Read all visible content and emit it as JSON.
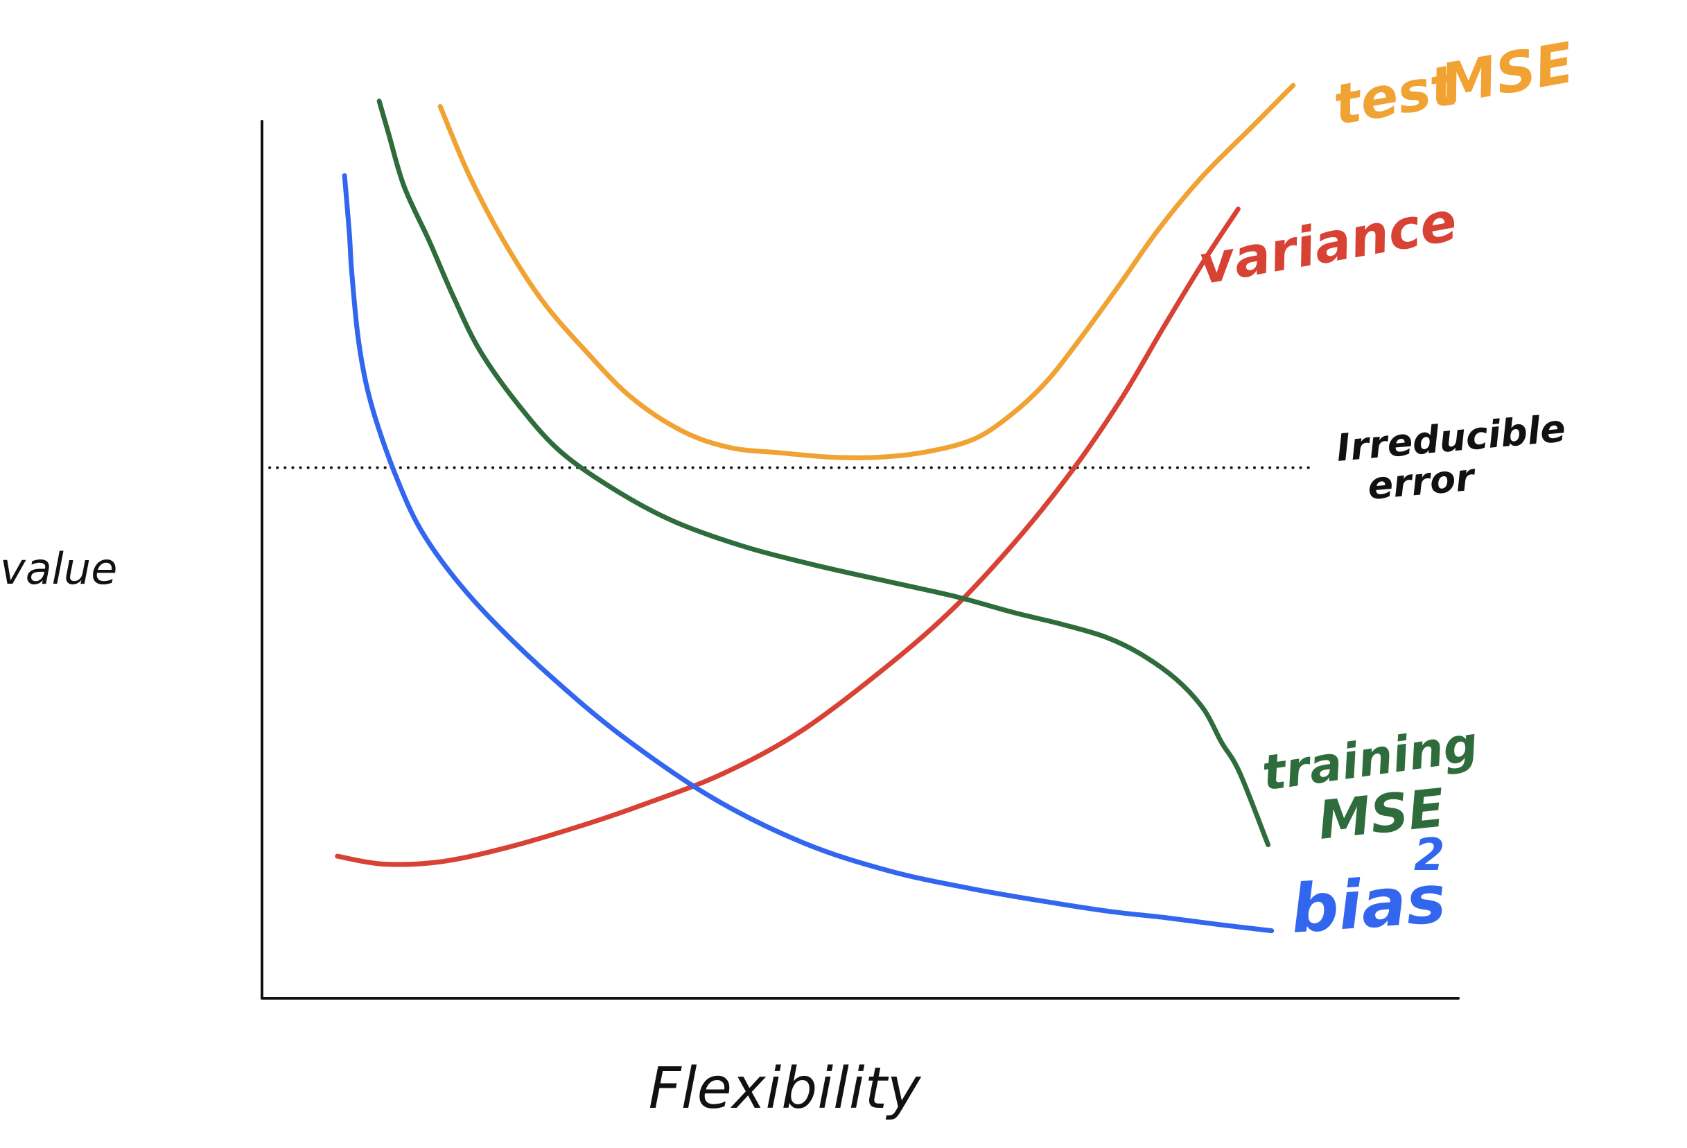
{
  "chart_data": {
    "type": "line",
    "title": "",
    "xlabel": "Flexibility",
    "ylabel": "value",
    "xlim": [
      0,
      100
    ],
    "ylim": [
      0,
      100
    ],
    "grid": false,
    "legend": "none",
    "reference_lines": [
      {
        "name": "Irreducible error",
        "label_lines": [
          "Irreducible",
          "error"
        ],
        "y": 60.5,
        "style": "dotted",
        "color": "#111111"
      }
    ],
    "series": [
      {
        "name": "test MSE",
        "label_parts": [
          "test",
          "MSE"
        ],
        "color": "#f0a232",
        "x": [
          14.9,
          17.3,
          20.1,
          23.4,
          27.0,
          30.8,
          35.1,
          39.1,
          43.3,
          47.6,
          51.6,
          55.5,
          59.4,
          62.4,
          65.5,
          68.5,
          71.7,
          74.9,
          78.6,
          82.7,
          86.2
        ],
        "y": [
          101.7,
          93.9,
          86.6,
          79.6,
          73.9,
          68.6,
          64.7,
          62.8,
          62.2,
          61.7,
          61.7,
          62.3,
          63.7,
          66.3,
          70.2,
          75.4,
          81.4,
          87.6,
          93.7,
          99.3,
          104.1
        ]
      },
      {
        "name": "variance",
        "label_parts": [
          "variance"
        ],
        "color": "#d84234",
        "x": [
          6.3,
          10.2,
          15.1,
          20.8,
          27.2,
          32.1,
          38.5,
          45.1,
          52.2,
          57.9,
          63.3,
          67.9,
          71.9,
          75.4,
          78.7,
          81.6
        ],
        "y": [
          16.2,
          15.3,
          15.6,
          17.3,
          19.9,
          22.2,
          25.6,
          30.5,
          37.8,
          44.6,
          52.6,
          60.5,
          68.5,
          76.6,
          84.0,
          90.0
        ]
      },
      {
        "name": "training MSE",
        "label_parts": [
          "training",
          "MSE"
        ],
        "color": "#2e6c3c",
        "x": [
          9.8,
          10.6,
          11.9,
          14.0,
          16.0,
          18.2,
          21.3,
          24.9,
          29.6,
          34.4,
          40.1,
          45.9,
          52.4,
          58.0,
          62.8,
          67.0,
          70.5,
          73.4,
          76.4,
          78.7,
          80.2,
          81.7,
          84.1
        ],
        "y": [
          102.3,
          98.5,
          92.5,
          86.3,
          80.0,
          73.9,
          67.9,
          62.4,
          57.9,
          54.4,
          51.6,
          49.5,
          47.5,
          45.8,
          44.0,
          42.6,
          41.2,
          39.3,
          36.4,
          33.0,
          29.2,
          25.8,
          17.5
        ]
      },
      {
        "name": "bias²",
        "label_parts": [
          "bias",
          "2"
        ],
        "color": "#3366ee",
        "x": [
          6.9,
          7.3,
          7.5,
          8.0,
          8.7,
          9.7,
          11.3,
          13.2,
          16.0,
          19.6,
          24.3,
          30.1,
          37.6,
          45.3,
          52.5,
          59.3,
          65.6,
          70.9,
          75.5,
          80.0,
          84.4
        ],
        "y": [
          93.8,
          87.3,
          82.9,
          75.7,
          70.1,
          65.2,
          59.2,
          53.6,
          48.1,
          42.6,
          36.5,
          29.9,
          22.9,
          17.7,
          14.5,
          12.5,
          11.0,
          9.9,
          9.2,
          8.4,
          7.7
        ]
      }
    ]
  }
}
